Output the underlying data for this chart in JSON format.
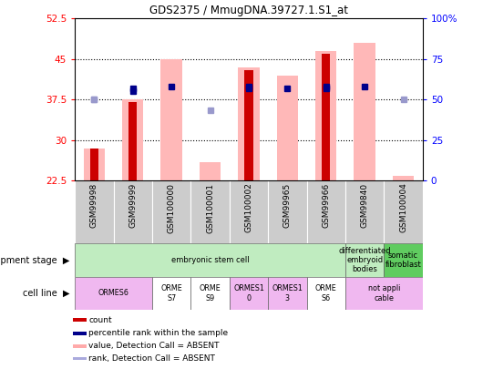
{
  "title": "GDS2375 / MmugDNA.39727.1.S1_at",
  "samples": [
    "GSM99998",
    "GSM99999",
    "GSM100000",
    "GSM100001",
    "GSM100002",
    "GSM99965",
    "GSM99966",
    "GSM99840",
    "GSM100004"
  ],
  "count_present": [
    null,
    37.0,
    null,
    null,
    43.0,
    null,
    46.0,
    null,
    null
  ],
  "count_absent": [
    28.5,
    null,
    null,
    null,
    null,
    null,
    null,
    null,
    null
  ],
  "value_absent": [
    28.5,
    37.5,
    45.0,
    26.0,
    43.5,
    42.0,
    46.5,
    48.0,
    23.5
  ],
  "rank_present": [
    null,
    39.0,
    40.0,
    null,
    39.5,
    39.5,
    39.5,
    40.0,
    null
  ],
  "rank_absent": [
    37.5,
    null,
    null,
    35.5,
    null,
    null,
    null,
    null,
    37.5
  ],
  "percentile_present": [
    null,
    39.5,
    null,
    null,
    40.0,
    null,
    40.0,
    null,
    null
  ],
  "percentile_absent": [
    37.5,
    null,
    null,
    null,
    null,
    null,
    null,
    null,
    null
  ],
  "ylim_left": [
    22.5,
    52.5
  ],
  "ylim_right": [
    0,
    100
  ],
  "yticks_left": [
    22.5,
    30.0,
    37.5,
    45.0,
    52.5
  ],
  "yticks_right": [
    0,
    25,
    50,
    75,
    100
  ],
  "ytick_labels_left": [
    "22.5",
    "30",
    "37.5",
    "45",
    "52.5"
  ],
  "ytick_labels_right": [
    "0",
    "25",
    "50",
    "75",
    "100%"
  ],
  "development_stages": [
    {
      "label": "embryonic stem cell",
      "span": [
        0,
        7
      ],
      "color": "#c0ecc0"
    },
    {
      "label": "differentiated\nembryoid\nbodies",
      "span": [
        7,
        8
      ],
      "color": "#c0ecc0"
    },
    {
      "label": "somatic\nfibroblast",
      "span": [
        8,
        9
      ],
      "color": "#60cc60"
    }
  ],
  "cell_lines": [
    {
      "label": "ORMES6",
      "span": [
        0,
        2
      ],
      "color": "#f0b8f0"
    },
    {
      "label": "ORME\nS7",
      "span": [
        2,
        3
      ],
      "color": "#ffffff"
    },
    {
      "label": "ORME\nS9",
      "span": [
        3,
        4
      ],
      "color": "#ffffff"
    },
    {
      "label": "ORMES1\n0",
      "span": [
        4,
        5
      ],
      "color": "#f0b8f0"
    },
    {
      "label": "ORMES1\n3",
      "span": [
        5,
        6
      ],
      "color": "#f0b8f0"
    },
    {
      "label": "ORME\nS6",
      "span": [
        6,
        7
      ],
      "color": "#ffffff"
    },
    {
      "label": "not appli\ncable",
      "span": [
        7,
        9
      ],
      "color": "#f0b8f0"
    }
  ],
  "legend_items": [
    {
      "label": "count",
      "color": "#cc0000"
    },
    {
      "label": "percentile rank within the sample",
      "color": "#00008b"
    },
    {
      "label": "value, Detection Call = ABSENT",
      "color": "#ffaaaa"
    },
    {
      "label": "rank, Detection Call = ABSENT",
      "color": "#aaaadd"
    }
  ],
  "bar_color_count": "#cc0000",
  "bar_color_absent": "#ffb8b8",
  "marker_color_present": "#00008b",
  "marker_color_absent": "#9999cc"
}
